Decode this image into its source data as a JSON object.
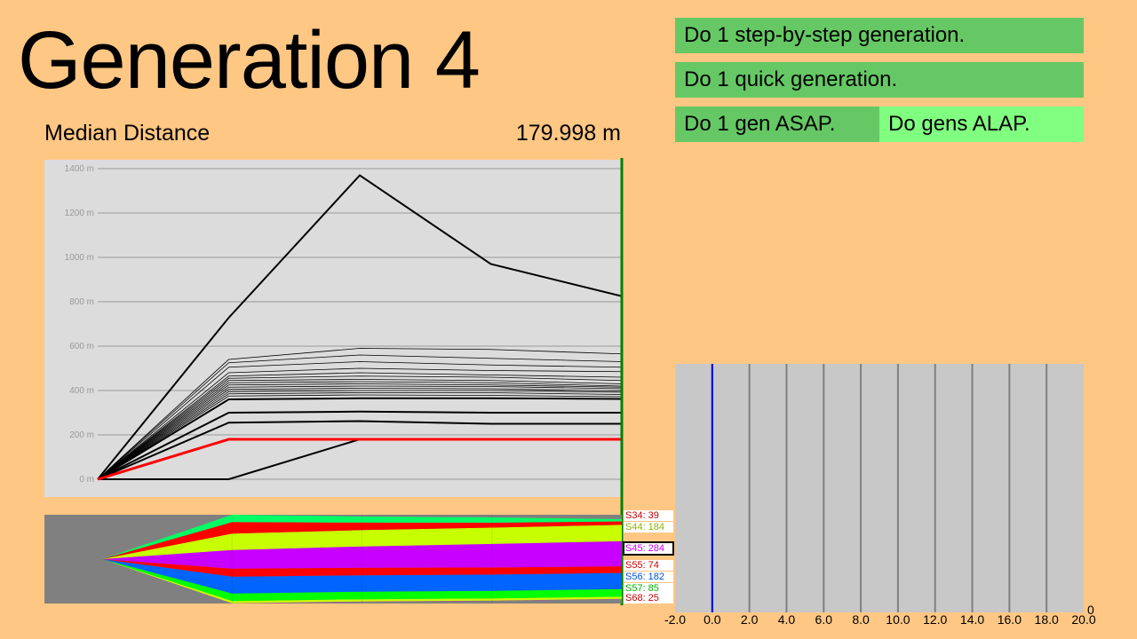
{
  "header": {
    "generation_title": "Generation 4",
    "median_label": "Median Distance",
    "median_value": "179.998 m"
  },
  "buttons": {
    "step_by_step": "Do 1 step-by-step generation.",
    "quick": "Do 1 quick generation.",
    "asap": "Do 1 gen ASAP.",
    "alap": "Do gens ALAP."
  },
  "colors": {
    "background": "#FFC784",
    "button_dark": "#66C864",
    "button_light": "#80FF80",
    "median_line": "#FF0000",
    "current_gen_line": "#008000",
    "histogram_marker": "#0000FF"
  },
  "chart_data": [
    {
      "type": "line",
      "title": "",
      "x": [
        0,
        1,
        2,
        3,
        4
      ],
      "ylim": [
        0,
        1400
      ],
      "yticks": [
        0,
        200,
        400,
        600,
        800,
        1000,
        1200,
        1400
      ],
      "ytick_labels": [
        "0 m",
        "200 m",
        "400 m",
        "600 m",
        "800 m",
        "1000 m",
        "1200 m",
        "1400 m"
      ],
      "grid": true,
      "percentile_lines": [
        [
          0,
          728,
          1370,
          970,
          825
        ],
        [
          0,
          540,
          590,
          585,
          565
        ],
        [
          0,
          525,
          560,
          545,
          530
        ],
        [
          0,
          505,
          530,
          515,
          505
        ],
        [
          0,
          480,
          500,
          490,
          485
        ],
        [
          0,
          465,
          480,
          470,
          460
        ],
        [
          0,
          455,
          465,
          460,
          445
        ],
        [
          0,
          445,
          450,
          445,
          430
        ],
        [
          0,
          435,
          440,
          435,
          420
        ],
        [
          0,
          425,
          430,
          425,
          415
        ],
        [
          0,
          415,
          420,
          418,
          408
        ],
        [
          0,
          405,
          410,
          408,
          398
        ],
        [
          0,
          395,
          400,
          400,
          392
        ],
        [
          0,
          385,
          390,
          390,
          382
        ],
        [
          0,
          375,
          380,
          378,
          372
        ],
        [
          0,
          360,
          365,
          365,
          362
        ],
        [
          0,
          300,
          305,
          300,
          300
        ],
        [
          0,
          255,
          262,
          250,
          250
        ],
        [
          0,
          0,
          180,
          180,
          180
        ]
      ],
      "thick_line_indices": [
        0,
        15,
        16,
        17,
        18
      ],
      "median": [
        0,
        180,
        180,
        180,
        180
      ]
    },
    {
      "type": "area",
      "title": "",
      "x": [
        0,
        1,
        2,
        3,
        4
      ],
      "series": [
        {
          "color": "#FF00C8",
          "values": [
            0,
            3,
            3,
            3,
            3
          ]
        },
        {
          "color": "#C8FF00",
          "values": [
            0,
            25,
            25,
            25,
            25
          ]
        },
        {
          "color": "#00FF00",
          "values": [
            0,
            85,
            85,
            85,
            85
          ]
        },
        {
          "color": "#0064FF",
          "values": [
            0,
            190,
            185,
            183,
            182
          ]
        },
        {
          "color": "#FF0000",
          "values": [
            0,
            90,
            85,
            80,
            74
          ]
        },
        {
          "color": "#C800FF",
          "values": [
            0,
            210,
            240,
            265,
            284
          ]
        },
        {
          "color": "#C8FF00",
          "values": [
            0,
            184,
            184,
            184,
            184
          ]
        },
        {
          "color": "#FF0000",
          "values": [
            0,
            130,
            85,
            55,
            39
          ]
        },
        {
          "color": "#00FF64",
          "values": [
            0,
            83,
            68,
            60,
            25
          ]
        }
      ],
      "species_labels": [
        {
          "text": "S34: 39",
          "color": "#C80000"
        },
        {
          "text": "S44: 184",
          "color": "#8CB400"
        },
        {
          "text": "S45: 284",
          "color": "#C800FF",
          "boxed": true
        },
        {
          "text": "S55: 74",
          "color": "#C80000"
        },
        {
          "text": "S56: 182",
          "color": "#0050DC"
        },
        {
          "text": "S57: 85",
          "color": "#00B400"
        },
        {
          "text": "S68: 25",
          "color": "#C80000"
        }
      ]
    },
    {
      "type": "bar",
      "title": "",
      "xlim": [
        -2,
        20
      ],
      "xtick_labels": [
        "-2.0",
        "0.0",
        "2.0",
        "4.0",
        "6.0",
        "8.0",
        "10.0",
        "12.0",
        "14.0",
        "16.0",
        "18.0",
        "20.0"
      ],
      "y_corner_label": "0",
      "marker_x": 0
    }
  ]
}
